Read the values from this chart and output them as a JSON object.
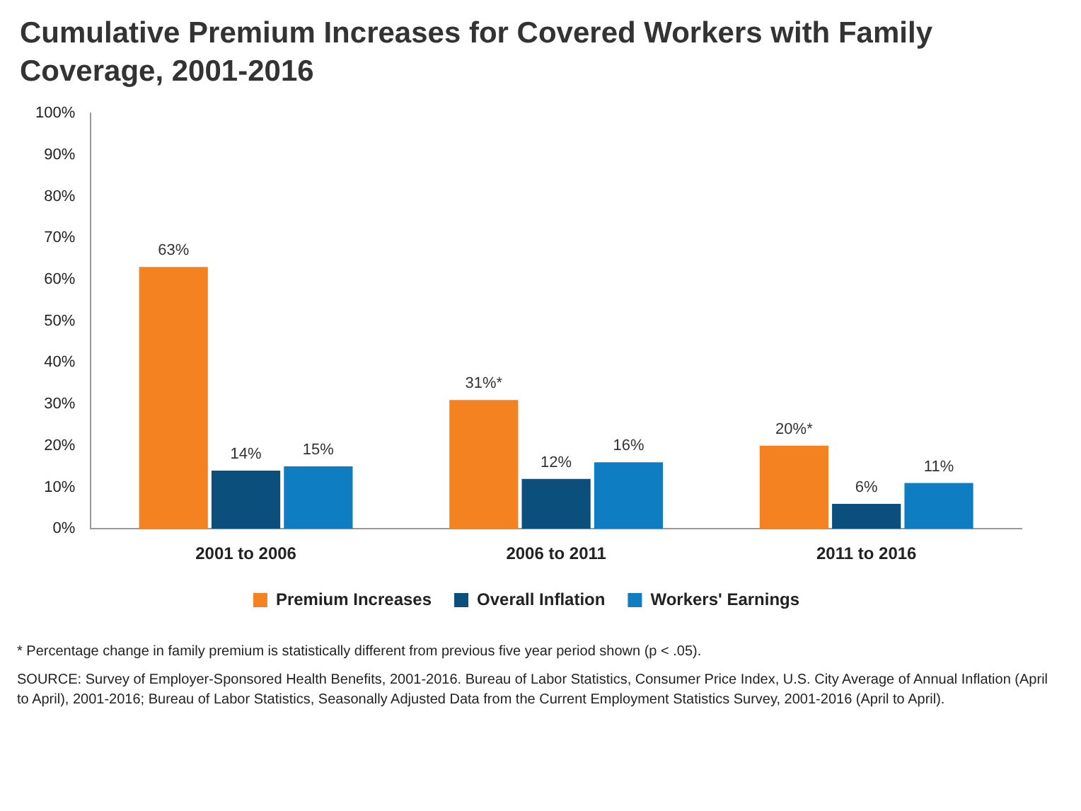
{
  "chart_data": {
    "type": "bar",
    "title": "Cumulative Premium Increases for Covered Workers with Family Coverage, 2001-2016",
    "categories": [
      "2001 to 2006",
      "2006 to 2011",
      "2011 to 2016"
    ],
    "series": [
      {
        "name": "Premium Increases",
        "color": "#f58220",
        "values": [
          63,
          31,
          20
        ],
        "value_labels": [
          "63%",
          "31%*",
          "20%*"
        ]
      },
      {
        "name": "Overall Inflation",
        "color": "#0b4f7c",
        "values": [
          14,
          12,
          6
        ],
        "value_labels": [
          "14%",
          "12%",
          "6%"
        ]
      },
      {
        "name": "Workers' Earnings",
        "color": "#0f7dc2",
        "values": [
          15,
          16,
          11
        ],
        "value_labels": [
          "15%",
          "16%",
          "11%"
        ]
      }
    ],
    "ylim": [
      0,
      100
    ],
    "yticks": [
      {
        "value": 0,
        "label": "0%"
      },
      {
        "value": 10,
        "label": "10%"
      },
      {
        "value": 20,
        "label": "20%"
      },
      {
        "value": 30,
        "label": "30%"
      },
      {
        "value": 40,
        "label": "40%"
      },
      {
        "value": 50,
        "label": "50%"
      },
      {
        "value": 60,
        "label": "60%"
      },
      {
        "value": 70,
        "label": "70%"
      },
      {
        "value": 80,
        "label": "80%"
      },
      {
        "value": 90,
        "label": "90%"
      },
      {
        "value": 100,
        "label": "100%"
      }
    ],
    "grid": false,
    "legend": "bottom",
    "annotations": [
      "* Percentage change in family premium is statistically different from previous five year period shown (p < .05).",
      "SOURCE: Survey of Employer-Sponsored Health Benefits, 2001-2016. Bureau of Labor Statistics, Consumer Price Index, U.S. City Average of Annual Inflation (April to April), 2001-2016; Bureau of Labor Statistics, Seasonally Adjusted Data from the Current Employment Statistics Survey, 2001-2016 (April to April)."
    ]
  }
}
